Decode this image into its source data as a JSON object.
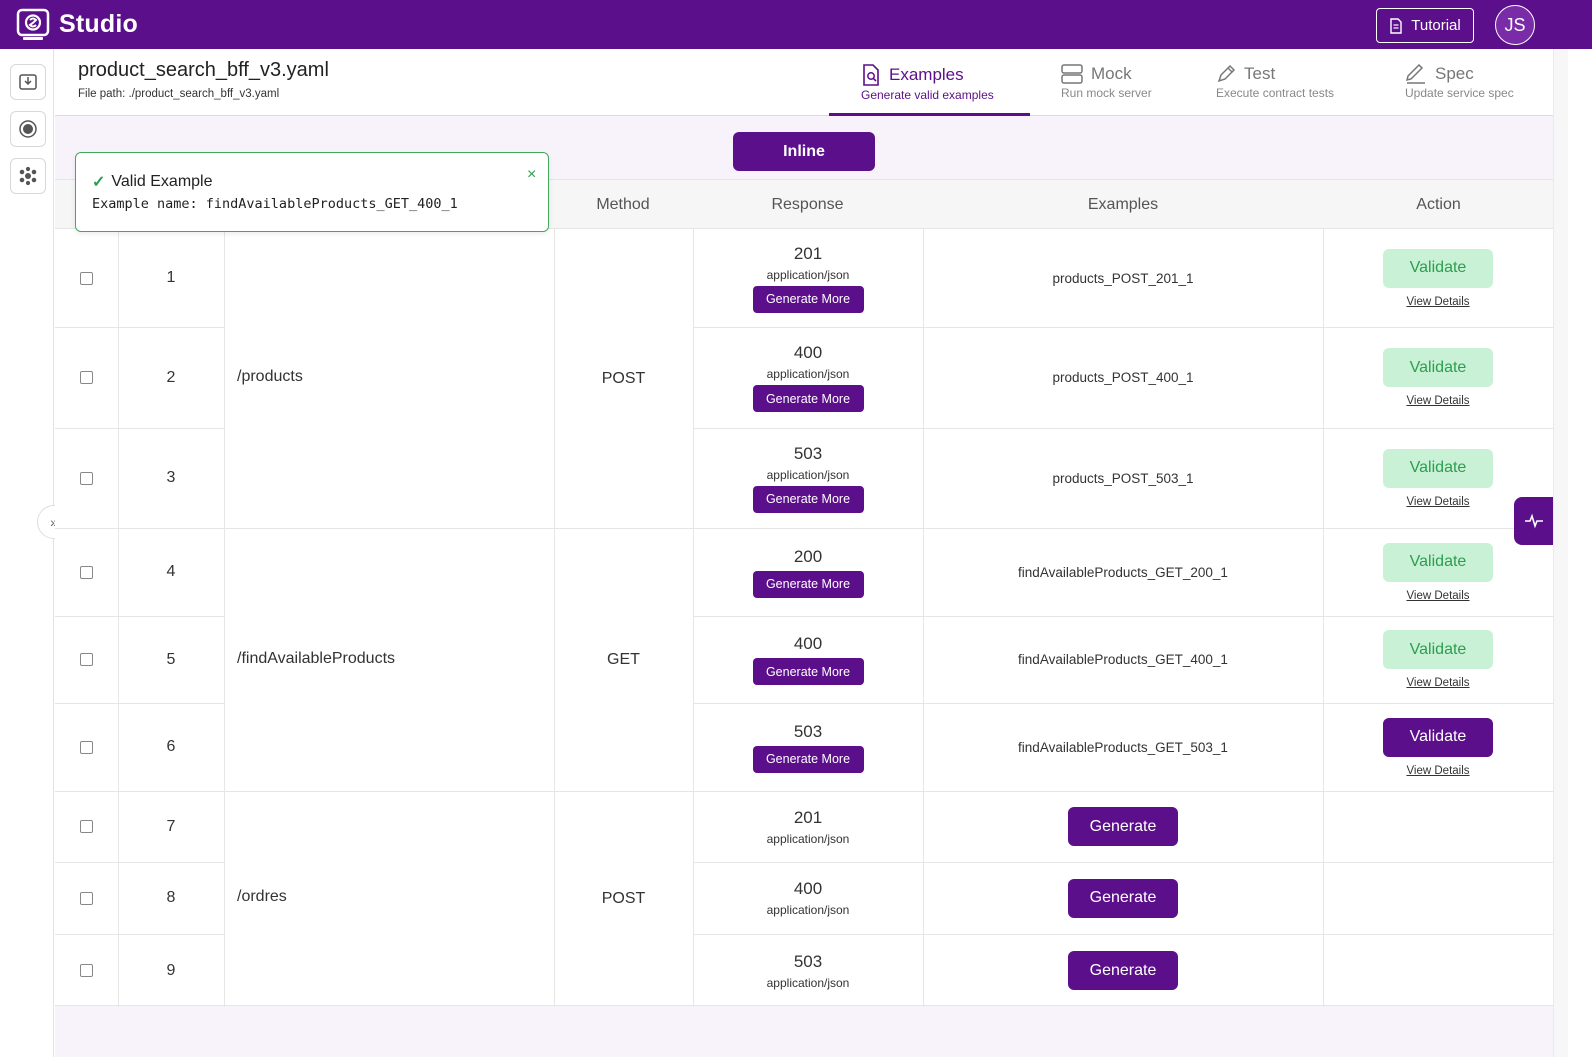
{
  "app": {
    "name": "Studio",
    "tutorial_label": "Tutorial",
    "avatar_initials": "JS"
  },
  "file": {
    "title": "product_search_bff_v3.yaml",
    "path": "File path: ./product_search_bff_v3.yaml"
  },
  "tabs": [
    {
      "label": "Examples",
      "sub": "Generate valid examples",
      "icon": "file-search-icon",
      "active": true
    },
    {
      "label": "Mock",
      "sub": "Run mock server",
      "icon": "server-icon",
      "active": false
    },
    {
      "label": "Test",
      "sub": "Execute contract tests",
      "icon": "pen-icon",
      "active": false
    },
    {
      "label": "Spec",
      "sub": "Update service spec",
      "icon": "pencil-icon",
      "active": false
    }
  ],
  "inline_label": "Inline",
  "table": {
    "headers": {
      "method": "Method",
      "response": "Response",
      "examples": "Examples",
      "action": "Action"
    },
    "groups": [
      {
        "path": "/products",
        "method": "POST"
      },
      {
        "path": "/findAvailableProducts",
        "method": "GET"
      },
      {
        "path": "/ordres",
        "method": "POST"
      }
    ],
    "rows": [
      {
        "num": "1",
        "code": "201",
        "ctype": "application/json",
        "gen_more": "Generate More",
        "example": "products_POST_201_1",
        "validate": "Validate",
        "details": "View Details"
      },
      {
        "num": "2",
        "code": "400",
        "ctype": "application/json",
        "gen_more": "Generate More",
        "example": "products_POST_400_1",
        "validate": "Validate",
        "details": "View Details"
      },
      {
        "num": "3",
        "code": "503",
        "ctype": "application/json",
        "gen_more": "Generate More",
        "example": "products_POST_503_1",
        "validate": "Validate",
        "details": "View Details"
      },
      {
        "num": "4",
        "code": "200",
        "gen_more": "Generate More",
        "example": "findAvailableProducts_GET_200_1",
        "validate": "Validate",
        "details": "View Details"
      },
      {
        "num": "5",
        "code": "400",
        "gen_more": "Generate More",
        "example": "findAvailableProducts_GET_400_1",
        "validate": "Validate",
        "details": "View Details"
      },
      {
        "num": "6",
        "code": "503",
        "gen_more": "Generate More",
        "example": "findAvailableProducts_GET_503_1",
        "validate": "Validate",
        "details": "View Details"
      },
      {
        "num": "7",
        "code": "201",
        "ctype": "application/json",
        "generate": "Generate"
      },
      {
        "num": "8",
        "code": "400",
        "ctype": "application/json",
        "generate": "Generate"
      },
      {
        "num": "9",
        "code": "503",
        "ctype": "application/json",
        "generate": "Generate"
      }
    ]
  },
  "toast": {
    "title": "Valid Example",
    "body": "Example name: findAvailableProducts_GET_400_1",
    "close": "×"
  },
  "expand_glyph": "»",
  "colors": {
    "brand": "#5c0f8b",
    "success": "#2e9d50",
    "success_bg": "#c9f1d6"
  }
}
